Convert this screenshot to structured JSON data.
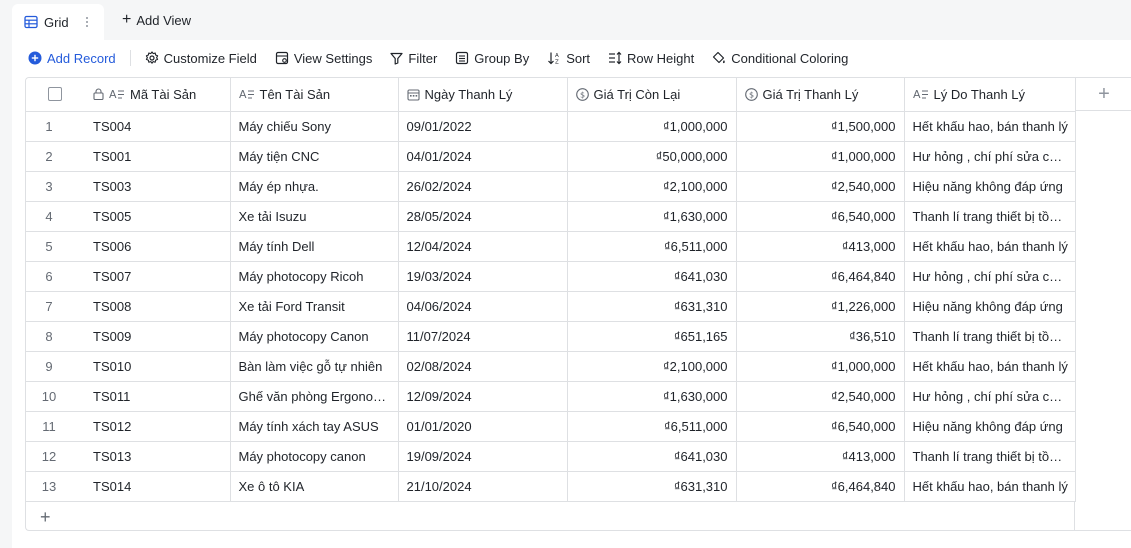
{
  "view_tabs": {
    "active_label": "Grid",
    "add_view_label": "Add View"
  },
  "toolbar": {
    "add_record": "Add Record",
    "customize_field": "Customize Field",
    "view_settings": "View Settings",
    "filter": "Filter",
    "group_by": "Group By",
    "sort": "Sort",
    "row_height": "Row Height",
    "conditional_coloring": "Conditional Coloring"
  },
  "columns": [
    {
      "label": "Mã Tài Sản",
      "icon": "lock-text-icon"
    },
    {
      "label": "Tên Tài Sản",
      "icon": "text-field-icon"
    },
    {
      "label": "Ngày Thanh Lý",
      "icon": "calendar-icon"
    },
    {
      "label": "Giá Trị Còn Lại",
      "icon": "currency-icon"
    },
    {
      "label": "Giá Trị Thanh Lý",
      "icon": "currency-icon"
    },
    {
      "label": "Lý Do Thanh Lý",
      "icon": "text-field-icon"
    }
  ],
  "rows": [
    {
      "n": "1",
      "code": "TS004",
      "name": "Máy chiếu Sony",
      "date": "09/01/2022",
      "remaining": "₫1,000,000",
      "liquidation": "₫1,500,000",
      "reason": "Hết khấu hao, bán thanh lý"
    },
    {
      "n": "2",
      "code": "TS001",
      "name": "Máy tiện CNC",
      "date": "04/01/2024",
      "remaining": "₫50,000,000",
      "liquidation": "₫1,000,000",
      "reason": "Hư hỏng , chí phí sửa chữa cao"
    },
    {
      "n": "3",
      "code": "TS003",
      "name": "Máy ép nhựa.",
      "date": "26/02/2024",
      "remaining": "₫2,100,000",
      "liquidation": "₫2,540,000",
      "reason": "Hiệu năng không đáp ứng"
    },
    {
      "n": "4",
      "code": "TS005",
      "name": "Xe tải Isuzu",
      "date": "28/05/2024",
      "remaining": "₫1,630,000",
      "liquidation": "₫6,540,000",
      "reason": "Thanh lí trang thiết bị tồn kho"
    },
    {
      "n": "5",
      "code": "TS006",
      "name": "Máy tính Dell",
      "date": "12/04/2024",
      "remaining": "₫6,511,000",
      "liquidation": "₫413,000",
      "reason": "Hết khấu hao, bán thanh lý"
    },
    {
      "n": "6",
      "code": "TS007",
      "name": "Máy photocopy Ricoh",
      "date": "19/03/2024",
      "remaining": "₫641,030",
      "liquidation": "₫6,464,840",
      "reason": "Hư hỏng , chí phí sửa chữa cao"
    },
    {
      "n": "7",
      "code": "TS008",
      "name": "Xe tải Ford Transit",
      "date": "04/06/2024",
      "remaining": "₫631,310",
      "liquidation": "₫1,226,000",
      "reason": "Hiệu năng không đáp ứng"
    },
    {
      "n": "8",
      "code": "TS009",
      "name": "Máy photocopy Canon",
      "date": "11/07/2024",
      "remaining": "₫651,165",
      "liquidation": "₫36,510",
      "reason": "Thanh lí trang thiết bị tồn kho"
    },
    {
      "n": "9",
      "code": "TS010",
      "name": "Bàn làm việc gỗ tự nhiên",
      "date": "02/08/2024",
      "remaining": "₫2,100,000",
      "liquidation": "₫1,000,000",
      "reason": "Hết khấu hao, bán thanh lý"
    },
    {
      "n": "10",
      "code": "TS011",
      "name": "Ghế văn phòng Ergonomic",
      "date": "12/09/2024",
      "remaining": "₫1,630,000",
      "liquidation": "₫2,540,000",
      "reason": "Hư hỏng , chí phí sửa chữa cao"
    },
    {
      "n": "11",
      "code": "TS012",
      "name": "Máy tính xách tay ASUS",
      "date": "01/01/2020",
      "remaining": "₫6,511,000",
      "liquidation": "₫6,540,000",
      "reason": "Hiệu năng không đáp ứng"
    },
    {
      "n": "12",
      "code": "TS013",
      "name": "Máy photocopy canon",
      "date": "19/09/2024",
      "remaining": "₫641,030",
      "liquidation": "₫413,000",
      "reason": "Thanh lí trang thiết bị tồn kho"
    },
    {
      "n": "13",
      "code": "TS014",
      "name": "Xe ô tô KIA",
      "date": "21/10/2024",
      "remaining": "₫631,310",
      "liquidation": "₫6,464,840",
      "reason": "Hết khấu hao, bán thanh lý"
    }
  ],
  "colors": {
    "accent": "#245bdb",
    "border": "#dee0e3",
    "muted": "#646a73"
  }
}
